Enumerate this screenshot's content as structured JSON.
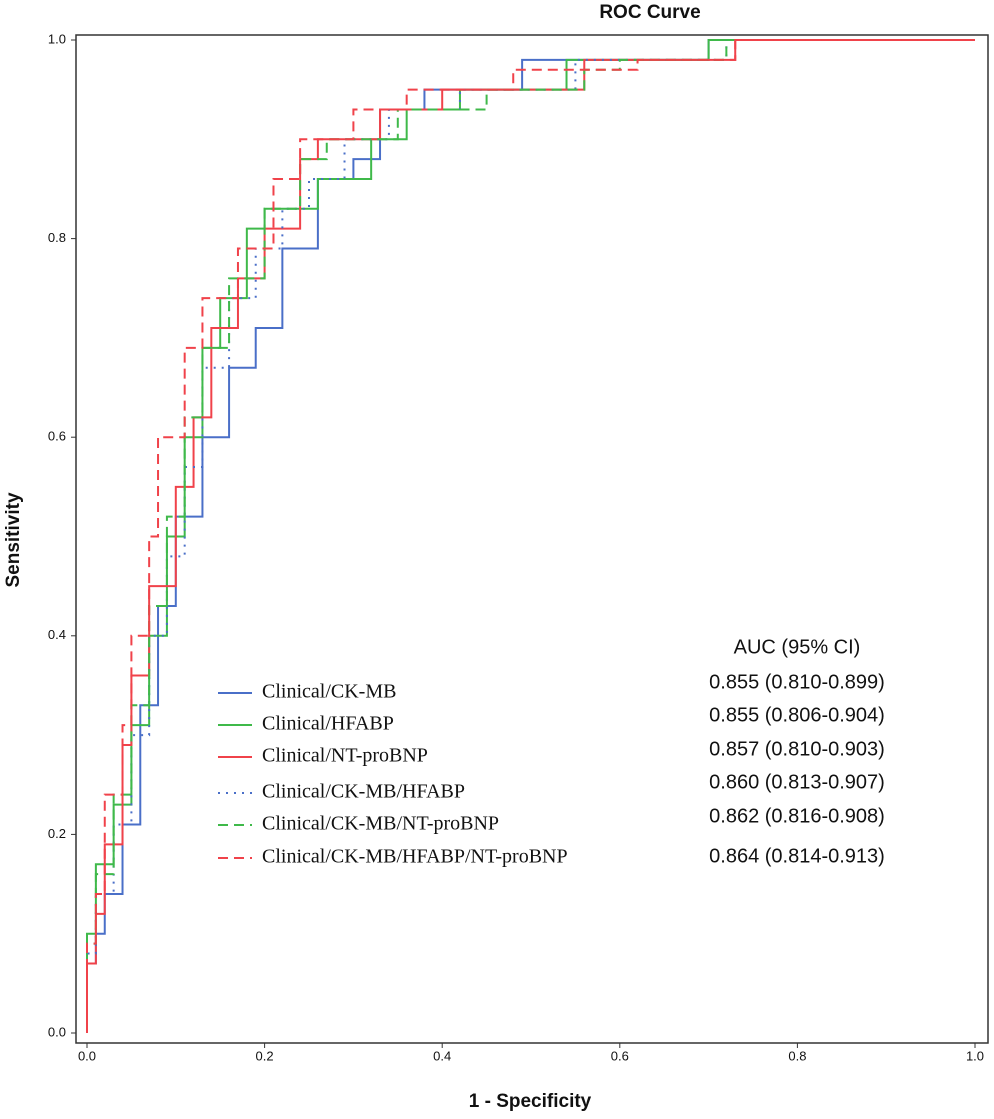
{
  "chart_data": {
    "type": "line",
    "title": "ROC Curve",
    "x_label": "1 - Specificity",
    "y_label": "Sensitivity",
    "xlim": [
      0,
      1
    ],
    "ylim": [
      0,
      1
    ],
    "xticks": [
      {
        "value": 0,
        "label": "0.0"
      },
      0.2,
      0.4,
      0.6,
      0.8,
      {
        "value": 1,
        "label": "1.0"
      }
    ],
    "yticks": [
      {
        "value": 0,
        "label": "0.0"
      },
      0.2,
      0.4,
      0.6,
      0.8,
      {
        "value": 1,
        "label": "1.0"
      }
    ],
    "auc_header": "AUC (95% CI)",
    "series": [
      {
        "name": "Clinical/CK-MB",
        "color": "#4a6fc8",
        "style": "solid",
        "auc_label": "0.855 (0.810-0.899)",
        "x": [
          0,
          0,
          0.01,
          0.01,
          0.02,
          0.02,
          0.04,
          0.04,
          0.06,
          0.06,
          0.08,
          0.08,
          0.1,
          0.1,
          0.13,
          0.13,
          0.16,
          0.16,
          0.19,
          0.19,
          0.22,
          0.22,
          0.26,
          0.26,
          0.3,
          0.3,
          0.33,
          0.33,
          0.38,
          0.38,
          0.49,
          0.49,
          0.7,
          0.7,
          1
        ],
        "values": [
          0,
          0.07,
          0.07,
          0.1,
          0.1,
          0.14,
          0.14,
          0.21,
          0.21,
          0.33,
          0.33,
          0.43,
          0.43,
          0.52,
          0.52,
          0.6,
          0.6,
          0.67,
          0.67,
          0.71,
          0.71,
          0.79,
          0.79,
          0.86,
          0.86,
          0.88,
          0.88,
          0.93,
          0.93,
          0.95,
          0.95,
          0.98,
          0.98,
          1,
          1
        ]
      },
      {
        "name": "Clinical/HFABP",
        "color": "#3fb94a",
        "style": "solid",
        "auc_label": "0.855 (0.806-0.904)",
        "x": [
          0,
          0,
          0.01,
          0.01,
          0.03,
          0.03,
          0.05,
          0.05,
          0.07,
          0.07,
          0.09,
          0.09,
          0.11,
          0.11,
          0.13,
          0.13,
          0.15,
          0.15,
          0.18,
          0.18,
          0.2,
          0.2,
          0.26,
          0.26,
          0.32,
          0.32,
          0.36,
          0.36,
          0.42,
          0.42,
          0.54,
          0.54,
          0.7,
          0.7,
          1
        ],
        "values": [
          0,
          0.1,
          0.1,
          0.17,
          0.17,
          0.23,
          0.23,
          0.31,
          0.31,
          0.4,
          0.4,
          0.5,
          0.5,
          0.6,
          0.6,
          0.69,
          0.69,
          0.74,
          0.74,
          0.81,
          0.81,
          0.83,
          0.83,
          0.86,
          0.86,
          0.9,
          0.9,
          0.93,
          0.93,
          0.95,
          0.95,
          0.98,
          0.98,
          1,
          1
        ]
      },
      {
        "name": "Clinical/NT-proBNP",
        "color": "#f0424a",
        "style": "solid",
        "auc_label": "0.857 (0.810-0.903)",
        "x": [
          0,
          0,
          0.01,
          0.01,
          0.02,
          0.02,
          0.04,
          0.04,
          0.05,
          0.05,
          0.07,
          0.07,
          0.1,
          0.1,
          0.12,
          0.12,
          0.14,
          0.14,
          0.17,
          0.17,
          0.2,
          0.2,
          0.24,
          0.24,
          0.26,
          0.26,
          0.33,
          0.33,
          0.4,
          0.4,
          0.56,
          0.56,
          0.73,
          0.73,
          1
        ],
        "values": [
          0,
          0.07,
          0.07,
          0.12,
          0.12,
          0.19,
          0.19,
          0.29,
          0.29,
          0.36,
          0.36,
          0.45,
          0.45,
          0.55,
          0.55,
          0.62,
          0.62,
          0.71,
          0.71,
          0.76,
          0.76,
          0.81,
          0.81,
          0.88,
          0.88,
          0.9,
          0.9,
          0.93,
          0.93,
          0.95,
          0.95,
          0.98,
          0.98,
          1,
          1
        ]
      },
      {
        "name": "Clinical/CK-MB/HFABP",
        "color": "#4a6fc8",
        "style": "dotted",
        "auc_label": "0.860 (0.813-0.907)",
        "x": [
          0,
          0,
          0.01,
          0.01,
          0.03,
          0.03,
          0.05,
          0.05,
          0.07,
          0.07,
          0.09,
          0.09,
          0.11,
          0.11,
          0.13,
          0.13,
          0.16,
          0.16,
          0.19,
          0.19,
          0.22,
          0.22,
          0.25,
          0.25,
          0.29,
          0.29,
          0.34,
          0.34,
          0.42,
          0.42,
          0.55,
          0.55,
          0.72,
          0.72,
          1
        ],
        "values": [
          0,
          0.08,
          0.08,
          0.14,
          0.14,
          0.21,
          0.21,
          0.3,
          0.3,
          0.4,
          0.4,
          0.48,
          0.48,
          0.57,
          0.57,
          0.67,
          0.67,
          0.74,
          0.74,
          0.79,
          0.79,
          0.83,
          0.83,
          0.86,
          0.86,
          0.9,
          0.9,
          0.93,
          0.93,
          0.95,
          0.95,
          0.98,
          0.98,
          1,
          1
        ]
      },
      {
        "name": "Clinical/CK-MB/NT-proBNP",
        "color": "#3fb94a",
        "style": "dashed",
        "auc_label": "0.862 (0.816-0.908)",
        "x": [
          0,
          0,
          0.01,
          0.01,
          0.03,
          0.03,
          0.05,
          0.05,
          0.07,
          0.07,
          0.09,
          0.09,
          0.11,
          0.11,
          0.13,
          0.13,
          0.16,
          0.16,
          0.2,
          0.2,
          0.24,
          0.24,
          0.27,
          0.27,
          0.35,
          0.35,
          0.45,
          0.45,
          0.56,
          0.56,
          0.6,
          0.6,
          0.72,
          0.72,
          1
        ],
        "values": [
          0,
          0.09,
          0.09,
          0.16,
          0.16,
          0.24,
          0.24,
          0.33,
          0.33,
          0.43,
          0.43,
          0.52,
          0.52,
          0.62,
          0.62,
          0.69,
          0.69,
          0.76,
          0.76,
          0.83,
          0.83,
          0.88,
          0.88,
          0.9,
          0.9,
          0.93,
          0.93,
          0.95,
          0.95,
          0.97,
          0.97,
          0.98,
          0.98,
          1,
          1
        ]
      },
      {
        "name": "Clinical/CK-MB/HFABP/NT-proBNP",
        "color": "#f0424a",
        "style": "dashed",
        "auc_label": "0.864 (0.814-0.913)",
        "x": [
          0,
          0,
          0.01,
          0.01,
          0.02,
          0.02,
          0.04,
          0.04,
          0.05,
          0.05,
          0.07,
          0.07,
          0.08,
          0.08,
          0.11,
          0.11,
          0.13,
          0.13,
          0.17,
          0.17,
          0.21,
          0.21,
          0.24,
          0.24,
          0.3,
          0.3,
          0.36,
          0.36,
          0.48,
          0.48,
          0.62,
          0.62,
          0.73,
          0.73,
          1
        ],
        "values": [
          0,
          0.09,
          0.09,
          0.14,
          0.14,
          0.24,
          0.24,
          0.31,
          0.31,
          0.4,
          0.4,
          0.5,
          0.5,
          0.6,
          0.6,
          0.69,
          0.69,
          0.74,
          0.74,
          0.79,
          0.79,
          0.86,
          0.86,
          0.9,
          0.9,
          0.93,
          0.93,
          0.95,
          0.95,
          0.97,
          0.97,
          0.98,
          0.98,
          1,
          1
        ]
      }
    ]
  }
}
